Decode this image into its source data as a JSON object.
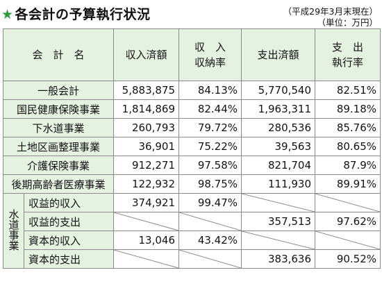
{
  "title": "各会計の予算執行状況",
  "note_date": "（平成29年3月末現在）",
  "note_unit": "（単位：万円）",
  "headers": {
    "account": "会　計　名",
    "revenue": "収入済額",
    "revenue_rate_line1": "収　入",
    "revenue_rate_line2": "収納率",
    "expense": "支出済額",
    "expense_rate_line1": "支　出",
    "expense_rate_line2": "執行率"
  },
  "rows": [
    {
      "name": "一般会計",
      "revenue": "5,883,875",
      "revenue_rate": "84.13%",
      "expense": "5,770,540",
      "expense_rate": "82.51%"
    },
    {
      "name": "国民健康保険事業",
      "revenue": "1,814,869",
      "revenue_rate": "82.44%",
      "expense": "1,963,311",
      "expense_rate": "89.18%"
    },
    {
      "name": "下水道事業",
      "revenue": "260,793",
      "revenue_rate": "79.72%",
      "expense": "280,536",
      "expense_rate": "85.76%"
    },
    {
      "name": "土地区画整理事業",
      "revenue": "36,901",
      "revenue_rate": "75.22%",
      "expense": "39,563",
      "expense_rate": "80.65%"
    },
    {
      "name": "介護保険事業",
      "revenue": "912,271",
      "revenue_rate": "97.58%",
      "expense": "821,704",
      "expense_rate": "87.9%"
    },
    {
      "name": "後期高齢者医療事業",
      "revenue": "122,932",
      "revenue_rate": "98.75%",
      "expense": "111,930",
      "expense_rate": "89.91%"
    }
  ],
  "water": {
    "group_label": "水道事業",
    "rows": [
      {
        "name": "収益的収入",
        "revenue": "374,921",
        "revenue_rate": "99.47%"
      },
      {
        "name": "収益的支出",
        "expense": "357,513",
        "expense_rate": "97.62%"
      },
      {
        "name": "資本的収入",
        "revenue": "13,046",
        "revenue_rate": "43.42%"
      },
      {
        "name": "資本的支出",
        "expense": "383,636",
        "expense_rate": "90.52%"
      }
    ]
  }
}
